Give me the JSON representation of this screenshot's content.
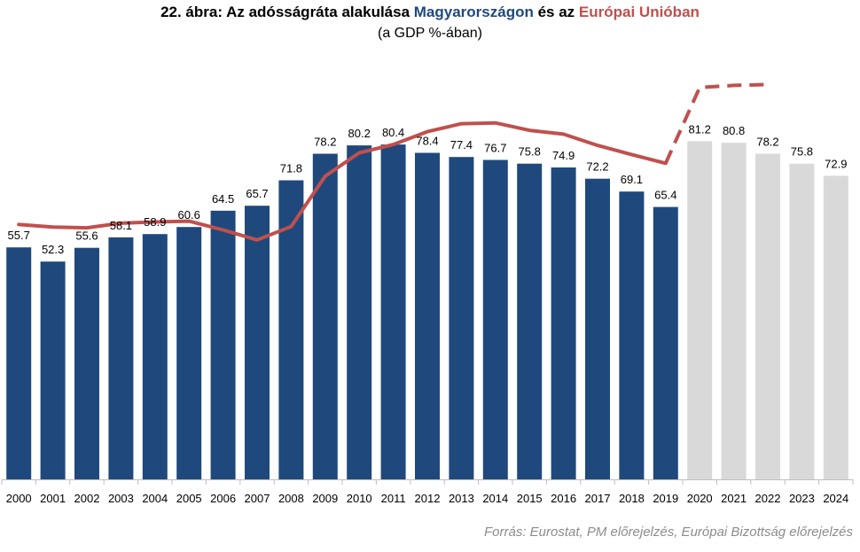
{
  "header": {
    "title_part1": "22. ábra: Az adósságráta alakulása ",
    "title_hu": "Magyarországon",
    "title_part2": " és az ",
    "title_eu": "Európai Unióban",
    "subtitle": "(a GDP %-ában)"
  },
  "colors": {
    "hu_bar": "#1f497d",
    "forecast_bar": "#d9d9d9",
    "eu_line": "#c0504d",
    "title_hu": "#1f497d",
    "title_eu": "#c0504d"
  },
  "chart_data": {
    "type": "bar",
    "categories": [
      "2000",
      "2001",
      "2002",
      "2003",
      "2004",
      "2005",
      "2006",
      "2007",
      "2008",
      "2009",
      "2010",
      "2011",
      "2012",
      "2013",
      "2014",
      "2015",
      "2016",
      "2017",
      "2018",
      "2019",
      "2020",
      "2021",
      "2022",
      "2023",
      "2024"
    ],
    "series": [
      {
        "name": "Magyarországon",
        "type": "bar",
        "values": [
          55.7,
          52.3,
          55.6,
          58.1,
          58.9,
          60.6,
          64.5,
          65.7,
          71.8,
          78.2,
          80.2,
          80.4,
          78.4,
          77.4,
          76.7,
          75.8,
          74.9,
          72.2,
          69.1,
          65.4,
          81.2,
          80.8,
          78.2,
          75.8,
          72.9
        ],
        "forecast_from_index": 20
      },
      {
        "name": "Európai Unióban",
        "type": "line",
        "values": [
          61.2,
          60.6,
          60.4,
          61.5,
          61.8,
          62.0,
          59.9,
          57.5,
          60.7,
          72.8,
          78.4,
          80.4,
          83.5,
          85.4,
          85.6,
          83.8,
          82.9,
          80.2,
          78.0,
          75.9,
          94.1,
          94.6,
          94.8,
          null,
          null
        ],
        "dashed_from_index": 19
      }
    ],
    "ylim": [
      0,
      100
    ],
    "data_labels": true,
    "grid": false,
    "legend": "none"
  },
  "footer": {
    "source": "Forrás: Eurostat, PM előrejelzés, Európai Bizottság előrejelzés"
  }
}
